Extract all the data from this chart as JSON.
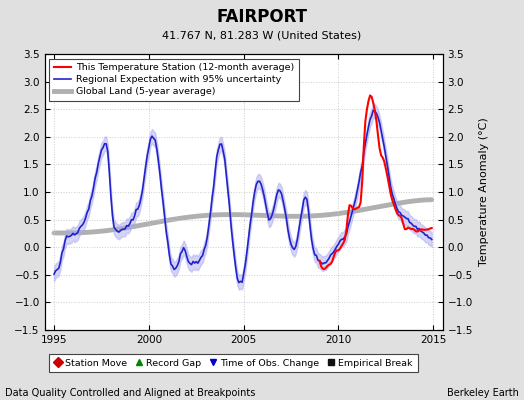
{
  "title": "FAIRPORT",
  "subtitle": "41.767 N, 81.283 W (United States)",
  "ylabel": "Temperature Anomaly (°C)",
  "xlabel_left": "Data Quality Controlled and Aligned at Breakpoints",
  "xlabel_right": "Berkeley Earth",
  "xmin": 1994.5,
  "xmax": 2015.5,
  "ymin": -1.5,
  "ymax": 3.5,
  "yticks": [
    -1.5,
    -1.0,
    -0.5,
    0,
    0.5,
    1.0,
    1.5,
    2.0,
    2.5,
    3.0,
    3.5
  ],
  "xticks": [
    1995,
    2000,
    2005,
    2010,
    2015
  ],
  "bg_color": "#e0e0e0",
  "plot_bg_color": "#ffffff",
  "regional_color": "#2222cc",
  "regional_band_color": "#aaaaee",
  "station_color": "#ff0000",
  "global_color": "#b0b0b0",
  "legend_labels": [
    "This Temperature Station (12-month average)",
    "Regional Expectation with 95% uncertainty",
    "Global Land (5-year average)"
  ],
  "marker_items": [
    {
      "label": "Station Move",
      "color": "#cc0000",
      "marker": "D"
    },
    {
      "label": "Record Gap",
      "color": "#008800",
      "marker": "^"
    },
    {
      "label": "Time of Obs. Change",
      "color": "#0000cc",
      "marker": "v"
    },
    {
      "label": "Empirical Break",
      "color": "#111111",
      "marker": "s"
    }
  ]
}
